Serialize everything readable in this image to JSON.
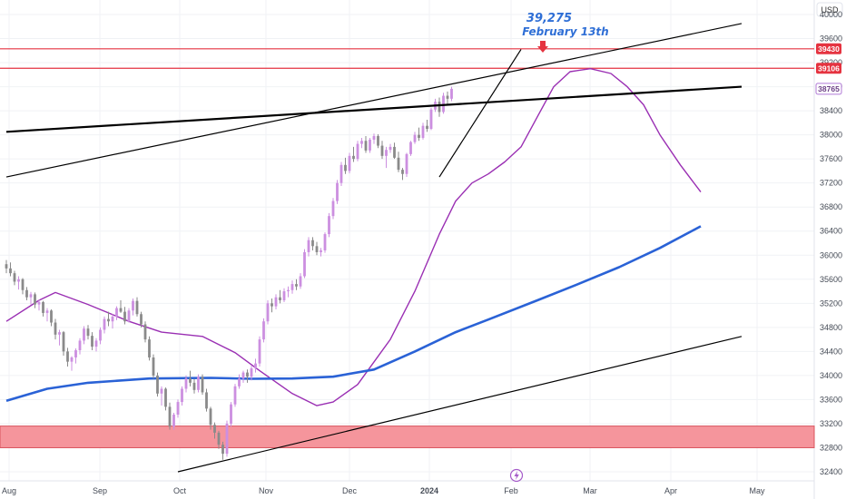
{
  "chart_data": {
    "type": "candlestick",
    "currency": "USD",
    "y_axis_ticks": [
      32400,
      32800,
      33200,
      33600,
      34000,
      34400,
      34800,
      35200,
      35600,
      36000,
      36400,
      36800,
      37200,
      37600,
      38000,
      38400,
      38800,
      39200,
      39600,
      40000
    ],
    "ylim": [
      32270,
      40200
    ],
    "x_axis_labels": [
      "Aug",
      "Sep",
      "Oct",
      "Nov",
      "Dec",
      "2024",
      "Feb",
      "Mar",
      "Apr",
      "May"
    ],
    "price_tags": [
      {
        "label": "39430",
        "value": 39430,
        "style": "filled",
        "color": "#e53340"
      },
      {
        "label": "39106",
        "value": 39106,
        "style": "filled",
        "color": "#e53340"
      },
      {
        "label": "38765",
        "value": 38765,
        "style": "outline",
        "color": "#b07ad6"
      }
    ],
    "horizontal_lines": [
      {
        "value": 39430,
        "color": "#e53340"
      },
      {
        "value": 39106,
        "color": "#e53340"
      }
    ],
    "zone": {
      "from": 32800,
      "to": 33160,
      "color": "#f5959c"
    },
    "annotation": {
      "price_text": "39,275",
      "date_text": "February 13th",
      "color": "#2f6fd6"
    },
    "arrow_color": "#e53340",
    "candle_colors": {
      "up": "#cc8fe0",
      "down": "#8a8a8a"
    },
    "series": [
      {
        "kind": "ohlc",
        "ohlc": [
          [
            35850,
            35920,
            35700,
            35780
          ],
          [
            35780,
            35880,
            35650,
            35700
          ],
          [
            35700,
            35740,
            35500,
            35560
          ],
          [
            35560,
            35650,
            35430,
            35600
          ],
          [
            35600,
            35620,
            35350,
            35420
          ],
          [
            35420,
            35470,
            35250,
            35300
          ],
          [
            35300,
            35390,
            35180,
            35350
          ],
          [
            35350,
            35380,
            35120,
            35180
          ],
          [
            35180,
            35260,
            35080,
            35220
          ],
          [
            35220,
            35240,
            34980,
            35040
          ],
          [
            35040,
            35120,
            34900,
            35080
          ],
          [
            35080,
            35100,
            34820,
            34880
          ],
          [
            34880,
            34940,
            34600,
            34680
          ],
          [
            34680,
            34760,
            34500,
            34720
          ],
          [
            34720,
            34740,
            34330,
            34400
          ],
          [
            34400,
            34460,
            34150,
            34230
          ],
          [
            34230,
            34320,
            34080,
            34300
          ],
          [
            34300,
            34450,
            34200,
            34420
          ],
          [
            34420,
            34620,
            34350,
            34580
          ],
          [
            34580,
            34820,
            34520,
            34780
          ],
          [
            34780,
            34840,
            34600,
            34660
          ],
          [
            34660,
            34720,
            34420,
            34480
          ],
          [
            34480,
            34620,
            34400,
            34580
          ],
          [
            34580,
            34800,
            34520,
            34760
          ],
          [
            34760,
            34980,
            34700,
            34940
          ],
          [
            34940,
            35060,
            34820,
            34900
          ],
          [
            34900,
            35020,
            34780,
            34980
          ],
          [
            34980,
            35150,
            34920,
            35120
          ],
          [
            35120,
            35250,
            35040,
            35060
          ],
          [
            35060,
            35140,
            34850,
            34900
          ],
          [
            34900,
            35120,
            34880,
            35080
          ],
          [
            35080,
            35280,
            35000,
            35240
          ],
          [
            35240,
            35300,
            34980,
            35020
          ],
          [
            35020,
            35060,
            34800,
            34850
          ],
          [
            34850,
            34900,
            34550,
            34600
          ],
          [
            34600,
            34650,
            34250,
            34300
          ],
          [
            34300,
            34350,
            33950,
            34000
          ],
          [
            34000,
            34050,
            33650,
            33700
          ],
          [
            33700,
            33820,
            33500,
            33780
          ],
          [
            33780,
            33800,
            33420,
            33480
          ],
          [
            33480,
            33550,
            33100,
            33150
          ],
          [
            33150,
            33380,
            33100,
            33350
          ],
          [
            33350,
            33600,
            33300,
            33560
          ],
          [
            33560,
            33820,
            33500,
            33780
          ],
          [
            33780,
            34000,
            33720,
            33950
          ],
          [
            33950,
            34080,
            33820,
            33880
          ],
          [
            33880,
            33940,
            33700,
            33760
          ],
          [
            33760,
            34020,
            33720,
            33980
          ],
          [
            33980,
            34020,
            33680,
            33720
          ],
          [
            33720,
            33780,
            33400,
            33450
          ],
          [
            33450,
            33480,
            33100,
            33180
          ],
          [
            33180,
            33220,
            32950,
            33050
          ],
          [
            33050,
            33080,
            32780,
            32850
          ],
          [
            32850,
            32900,
            32600,
            32700
          ],
          [
            32700,
            33250,
            32650,
            33200
          ],
          [
            33200,
            33560,
            33150,
            33520
          ],
          [
            33520,
            33860,
            33480,
            33820
          ],
          [
            33820,
            34020,
            33780,
            33950
          ],
          [
            33950,
            34080,
            33880,
            34050
          ],
          [
            34050,
            34100,
            33880,
            33980
          ],
          [
            33980,
            34160,
            33920,
            34120
          ],
          [
            34120,
            34280,
            34050,
            34200
          ],
          [
            34200,
            34650,
            34150,
            34600
          ],
          [
            34600,
            34950,
            34550,
            34900
          ],
          [
            34900,
            35250,
            34850,
            35200
          ],
          [
            35200,
            35280,
            35050,
            35150
          ],
          [
            35150,
            35350,
            35100,
            35300
          ],
          [
            35300,
            35420,
            35200,
            35250
          ],
          [
            35250,
            35450,
            35220,
            35400
          ],
          [
            35400,
            35480,
            35300,
            35420
          ],
          [
            35420,
            35580,
            35360,
            35520
          ],
          [
            35520,
            35600,
            35420,
            35480
          ],
          [
            35480,
            35700,
            35440,
            35650
          ],
          [
            35650,
            36100,
            35620,
            36050
          ],
          [
            36050,
            36300,
            35980,
            36250
          ],
          [
            36250,
            36300,
            36080,
            36150
          ],
          [
            36150,
            36220,
            36000,
            36050
          ],
          [
            36050,
            36120,
            35980,
            36080
          ],
          [
            36080,
            36380,
            36040,
            36350
          ],
          [
            36350,
            36700,
            36300,
            36650
          ],
          [
            36650,
            36950,
            36600,
            36900
          ],
          [
            36900,
            37250,
            36850,
            37200
          ],
          [
            37200,
            37550,
            37150,
            37500
          ],
          [
            37500,
            37620,
            37350,
            37400
          ],
          [
            37400,
            37700,
            37360,
            37650
          ],
          [
            37650,
            37800,
            37550,
            37600
          ],
          [
            37600,
            37900,
            37560,
            37850
          ],
          [
            37850,
            37950,
            37780,
            37900
          ],
          [
            37900,
            37980,
            37700,
            37740
          ],
          [
            37740,
            37950,
            37700,
            37920
          ],
          [
            37920,
            38020,
            37850,
            37980
          ],
          [
            37980,
            38010,
            37780,
            37820
          ],
          [
            37820,
            37900,
            37600,
            37650
          ],
          [
            37650,
            37800,
            37450,
            37750
          ],
          [
            37750,
            37850,
            37700,
            37800
          ],
          [
            37800,
            37870,
            37600,
            37620
          ],
          [
            37620,
            37720,
            37380,
            37420
          ],
          [
            37420,
            37450,
            37250,
            37350
          ],
          [
            37350,
            37700,
            37300,
            37680
          ],
          [
            37680,
            37900,
            37650,
            37880
          ],
          [
            37880,
            38050,
            37850,
            38000
          ],
          [
            38000,
            38120,
            37900,
            37950
          ],
          [
            37950,
            38200,
            37920,
            38150
          ],
          [
            38150,
            38250,
            38050,
            38100
          ],
          [
            38100,
            38450,
            38080,
            38420
          ],
          [
            38420,
            38600,
            38380,
            38550
          ],
          [
            38550,
            38620,
            38300,
            38380
          ],
          [
            38380,
            38700,
            38350,
            38650
          ],
          [
            38650,
            38720,
            38500,
            38600
          ],
          [
            38600,
            38800,
            38560,
            38765
          ]
        ]
      },
      {
        "kind": "line",
        "color": "#9a2fb3",
        "points": [
          [
            0,
            34900
          ],
          [
            8,
            35250
          ],
          [
            12,
            35380
          ],
          [
            20,
            35180
          ],
          [
            30,
            34900
          ],
          [
            38,
            34720
          ],
          [
            48,
            34650
          ],
          [
            56,
            34380
          ],
          [
            62,
            34080
          ],
          [
            70,
            33700
          ],
          [
            76,
            33500
          ],
          [
            80,
            33560
          ],
          [
            86,
            33850
          ],
          [
            94,
            34600
          ],
          [
            100,
            35400
          ],
          [
            106,
            36350
          ],
          [
            110,
            36900
          ],
          [
            114,
            37200
          ],
          [
            118,
            37350
          ],
          [
            122,
            37550
          ],
          [
            126,
            37800
          ],
          [
            130,
            38300
          ],
          [
            134,
            38800
          ],
          [
            138,
            39050
          ],
          [
            143,
            39100
          ],
          [
            148,
            39020
          ],
          [
            152,
            38800
          ],
          [
            156,
            38500
          ],
          [
            160,
            38000
          ],
          [
            165,
            37500
          ],
          [
            170,
            37050
          ]
        ]
      },
      {
        "kind": "line",
        "color": "#2a62d6",
        "points": [
          [
            0,
            33580
          ],
          [
            10,
            33780
          ],
          [
            20,
            33880
          ],
          [
            35,
            33950
          ],
          [
            50,
            33960
          ],
          [
            60,
            33945
          ],
          [
            70,
            33950
          ],
          [
            80,
            33980
          ],
          [
            90,
            34100
          ],
          [
            100,
            34400
          ],
          [
            110,
            34720
          ],
          [
            118,
            34930
          ],
          [
            130,
            35250
          ],
          [
            140,
            35520
          ],
          [
            150,
            35800
          ],
          [
            160,
            36120
          ],
          [
            170,
            36480
          ]
        ]
      }
    ],
    "trendlines": [
      {
        "from": [
          0,
          38050
        ],
        "to": [
          180,
          38800
        ],
        "color": "#000000",
        "width": 2.2
      },
      {
        "from": [
          0,
          37300
        ],
        "to": [
          180,
          39850
        ],
        "color": "#000000",
        "width": 1.2
      },
      {
        "from": [
          42,
          32400
        ],
        "to": [
          180,
          34650
        ],
        "color": "#000000",
        "width": 1.2
      },
      {
        "from": [
          106,
          37300
        ],
        "to": [
          126,
          39420
        ],
        "color": "#000000",
        "width": 1.2
      }
    ]
  }
}
